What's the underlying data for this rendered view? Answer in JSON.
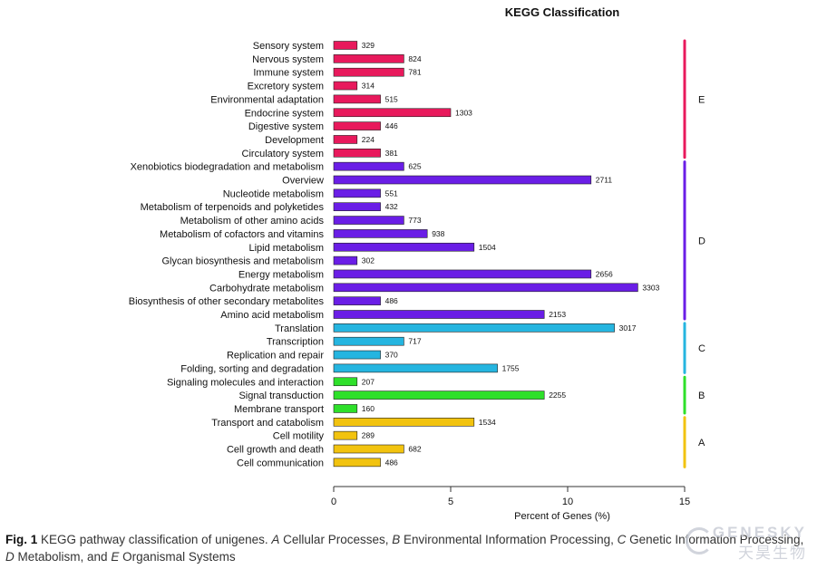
{
  "chart_data": {
    "type": "bar",
    "orientation": "horizontal",
    "title": "KEGG Classification",
    "xlabel": "Percent of Genes (%)",
    "ylabel": "",
    "xlim": [
      0,
      15
    ],
    "xticks": [
      "0",
      "5",
      "10",
      "15"
    ],
    "categories": [
      "Sensory system",
      "Nervous system",
      "Immune system",
      "Excretory system",
      "Environmental adaptation",
      "Endocrine system",
      "Digestive system",
      "Development",
      "Circulatory system",
      "Xenobiotics biodegradation and metabolism",
      "Overview",
      "Nucleotide metabolism",
      "Metabolism of terpenoids and polyketides",
      "Metabolism of other amino acids",
      "Metabolism of cofactors and vitamins",
      "Lipid metabolism",
      "Glycan biosynthesis and metabolism",
      "Energy metabolism",
      "Carbohydrate metabolism",
      "Biosynthesis of other secondary metabolites",
      "Amino acid metabolism",
      "Translation",
      "Transcription",
      "Replication and repair",
      "Folding, sorting and degradation",
      "Signaling molecules and interaction",
      "Signal transduction",
      "Membrane transport",
      "Transport and catabolism",
      "Cell motility",
      "Cell growth and death",
      "Cell communication"
    ],
    "counts": [
      329,
      824,
      781,
      314,
      515,
      1303,
      446,
      224,
      381,
      625,
      2711,
      551,
      432,
      773,
      938,
      1504,
      302,
      2656,
      3303,
      486,
      2153,
      3017,
      717,
      370,
      1755,
      207,
      2255,
      160,
      1534,
      289,
      682,
      486
    ],
    "percent": [
      1.0,
      3.0,
      3.0,
      1.0,
      2.0,
      5.0,
      2.0,
      1.0,
      2.0,
      3.0,
      11.0,
      2.0,
      2.0,
      3.0,
      4.0,
      6.0,
      1.0,
      11.0,
      13.0,
      2.0,
      9.0,
      12.0,
      3.0,
      2.0,
      7.0,
      1.0,
      9.0,
      1.0,
      6.0,
      1.0,
      3.0,
      2.0
    ],
    "groups": [
      {
        "label": "E",
        "count": 9,
        "color": "#e8195c"
      },
      {
        "label": "D",
        "count": 12,
        "color": "#6a1ee6"
      },
      {
        "label": "C",
        "count": 4,
        "color": "#25b5e0"
      },
      {
        "label": "B",
        "count": 3,
        "color": "#2ee02a"
      },
      {
        "label": "A",
        "count": 4,
        "color": "#f2c30f"
      }
    ],
    "grid": false
  },
  "caption": {
    "fig": "Fig. 1",
    "parts": [
      {
        "text": " KEGG pathway classification of unigenes. ",
        "style": "normal"
      },
      {
        "text": "A",
        "style": "italic"
      },
      {
        "text": " Cellular Processes, ",
        "style": "normal"
      },
      {
        "text": "B",
        "style": "italic"
      },
      {
        "text": " Environmental Information Processing, ",
        "style": "normal"
      },
      {
        "text": "C",
        "style": "italic"
      },
      {
        "text": " Genetic Information Processing, ",
        "style": "normal"
      },
      {
        "text": "D",
        "style": "italic"
      },
      {
        "text": " Metabolism, and ",
        "style": "normal"
      },
      {
        "text": "E",
        "style": "italic"
      },
      {
        "text": " Organismal Systems",
        "style": "normal"
      }
    ]
  },
  "watermark": {
    "line1": "GENESKY",
    "line2": "天昊生物"
  }
}
